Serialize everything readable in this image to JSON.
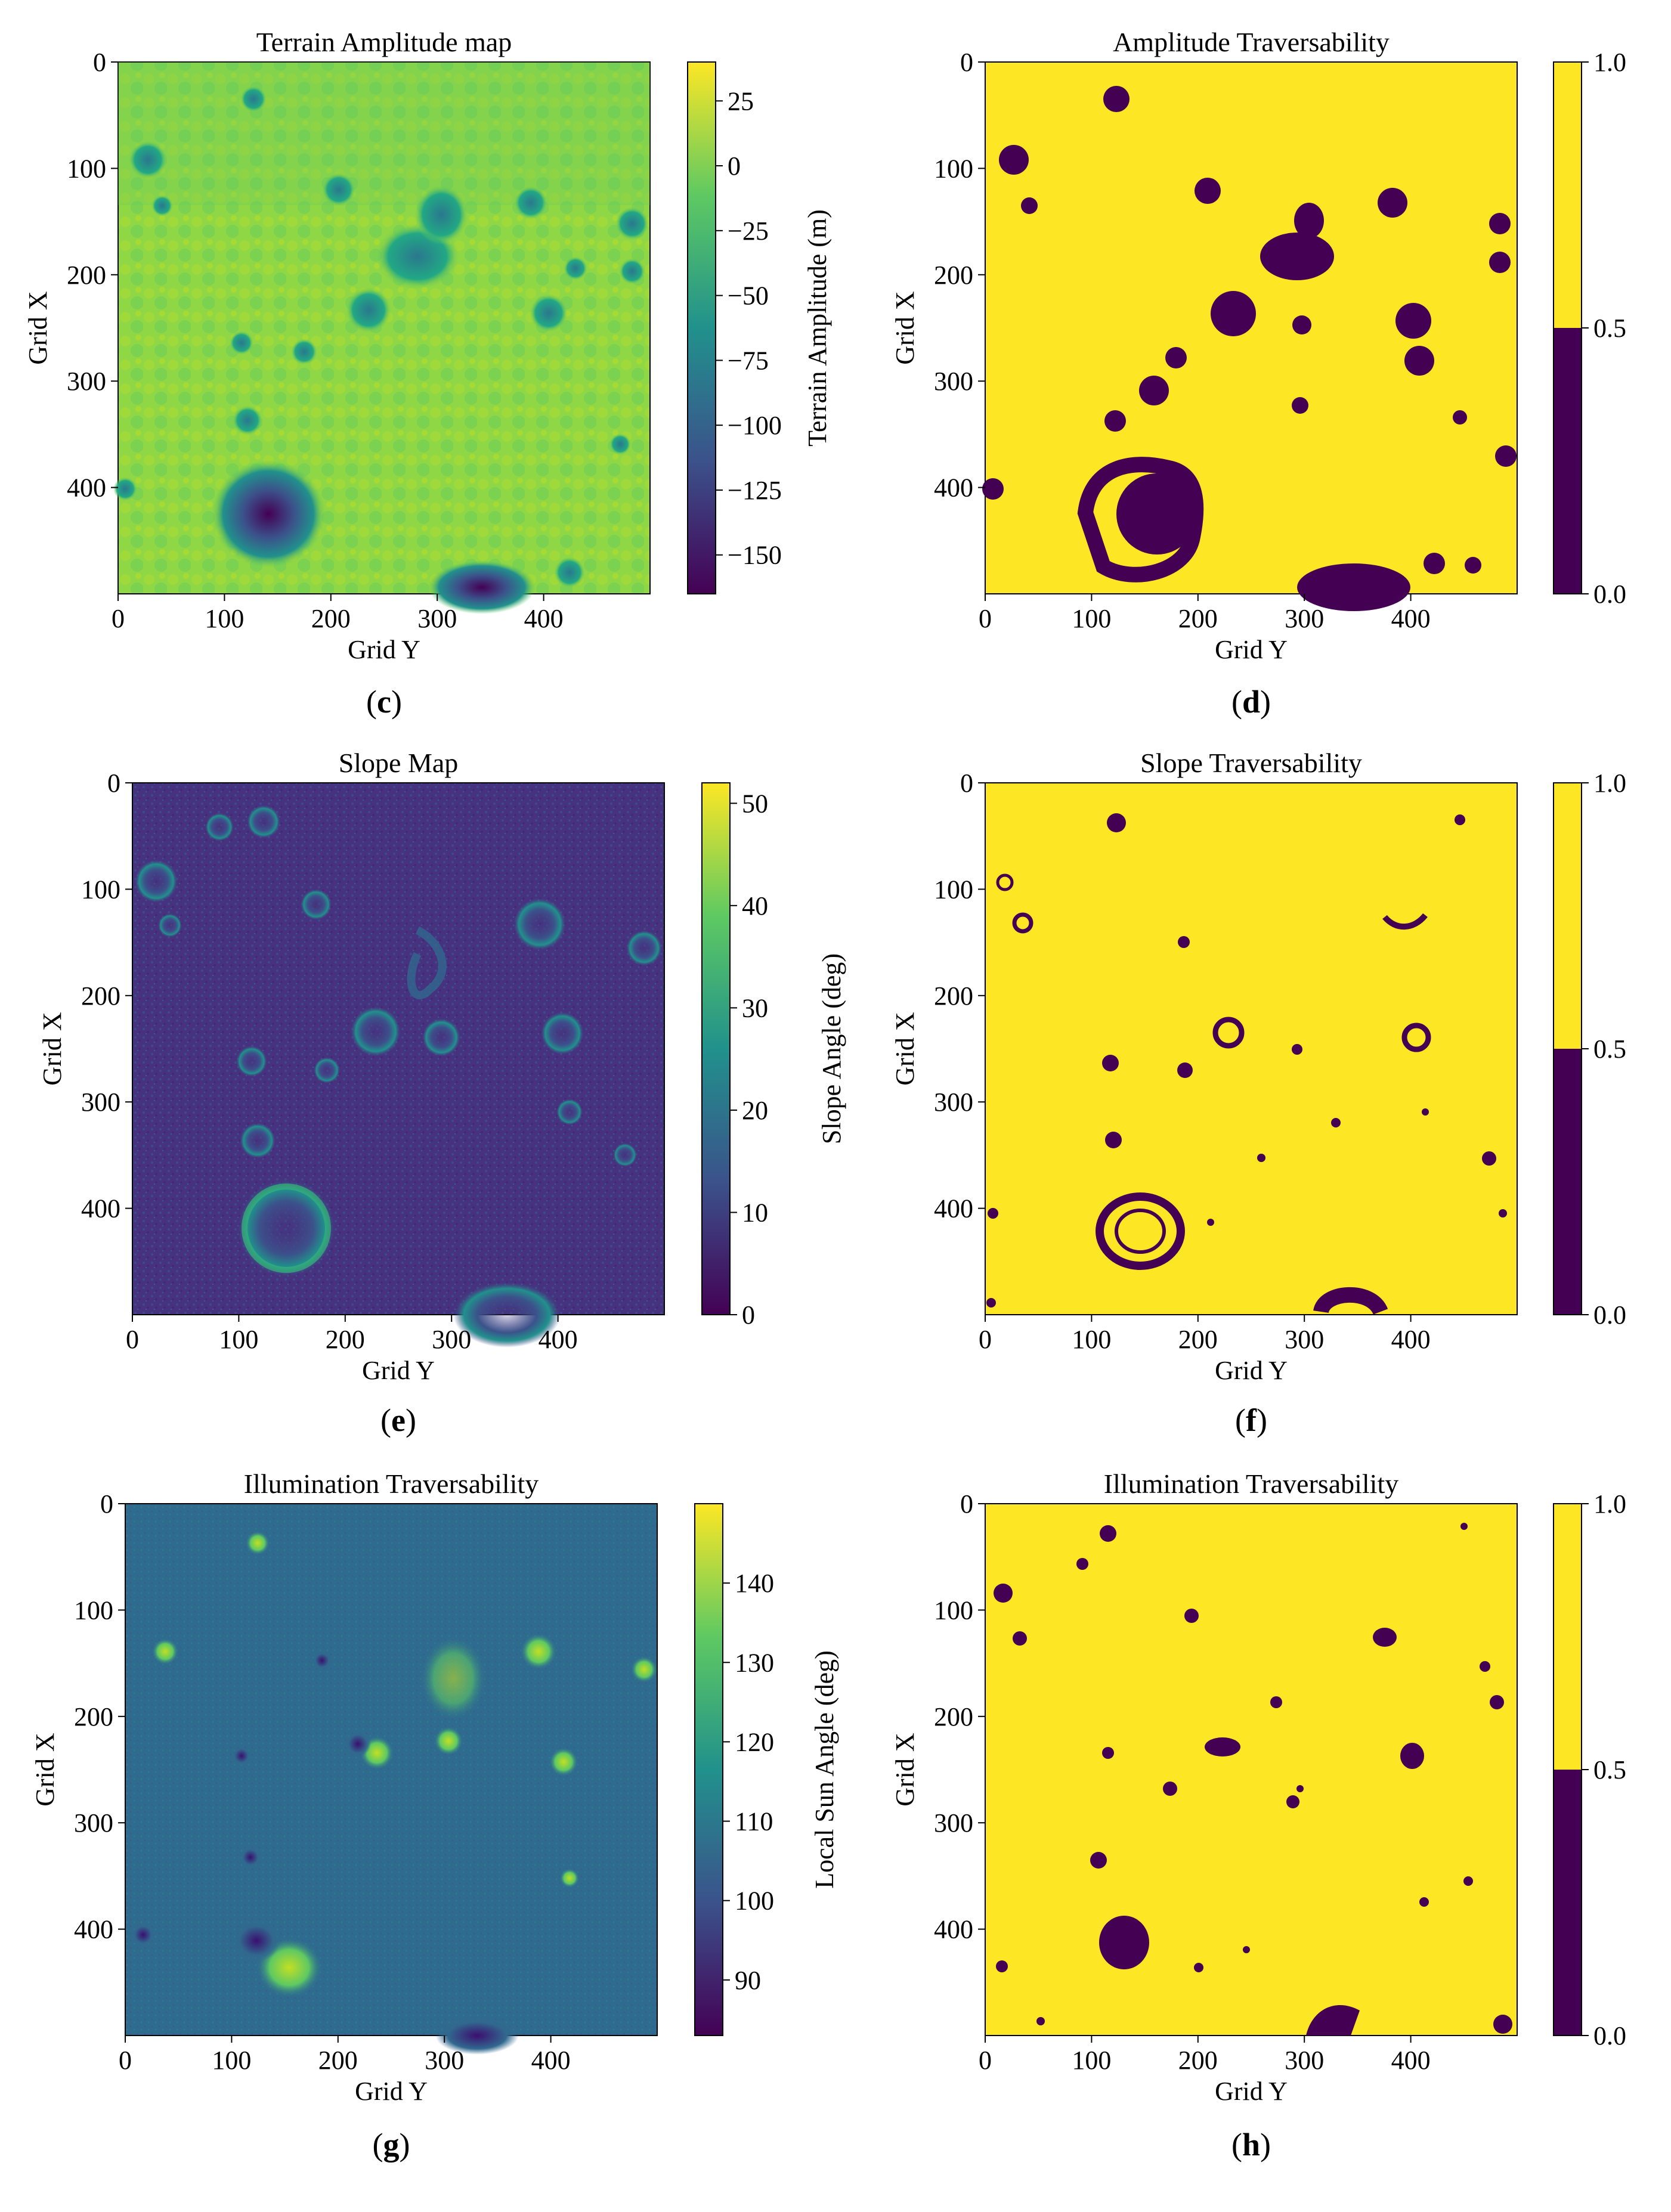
{
  "colors": {
    "viridis_dark": "#440154",
    "viridis_blue": "#3b528b",
    "viridis_teal": "#21918c",
    "viridis_green": "#5ec962",
    "viridis_yellow": "#fde725"
  },
  "chart_data": [
    {
      "id": "c",
      "type": "heatmap",
      "title": "Terrain Amplitude map",
      "xlabel": "Grid Y",
      "ylabel": "Grid X",
      "xlim": [
        0,
        500
      ],
      "ylim": [
        500,
        0
      ],
      "xticks": [
        "0",
        "100",
        "200",
        "300",
        "400"
      ],
      "yticks": [
        "0",
        "100",
        "200",
        "300",
        "400"
      ],
      "colorbar": {
        "label": "Terrain Amplitude (m)",
        "range": [
          -165,
          40
        ],
        "ticks": [
          "25",
          "0",
          "−25",
          "−50",
          "−75",
          "−100",
          "−125",
          "−150"
        ],
        "tick_values": [
          25,
          0,
          -25,
          -50,
          -75,
          -100,
          -125,
          -150
        ]
      },
      "caption": "c"
    },
    {
      "id": "d",
      "type": "heatmap",
      "title": "Amplitude Traversability",
      "xlabel": "Grid Y",
      "ylabel": "Grid X",
      "xlim": [
        0,
        500
      ],
      "ylim": [
        500,
        0
      ],
      "xticks": [
        "0",
        "100",
        "200",
        "300",
        "400"
      ],
      "yticks": [
        "0",
        "100",
        "200",
        "300",
        "400"
      ],
      "colorbar": {
        "label": "",
        "range": [
          0,
          1
        ],
        "discrete": true,
        "ticks": [
          "1.0",
          "0.5",
          "0.0"
        ],
        "tick_values": [
          1.0,
          0.5,
          0.0
        ]
      },
      "caption": "d"
    },
    {
      "id": "e",
      "type": "heatmap",
      "title": "Slope Map",
      "xlabel": "Grid Y",
      "ylabel": "Grid X",
      "xlim": [
        0,
        500
      ],
      "ylim": [
        500,
        0
      ],
      "xticks": [
        "0",
        "100",
        "200",
        "300",
        "400"
      ],
      "yticks": [
        "0",
        "100",
        "200",
        "300",
        "400"
      ],
      "colorbar": {
        "label": "Slope Angle (deg)",
        "range": [
          0,
          52
        ],
        "ticks": [
          "50",
          "40",
          "30",
          "20",
          "10",
          "0"
        ],
        "tick_values": [
          50,
          40,
          30,
          20,
          10,
          0
        ]
      },
      "caption": "e"
    },
    {
      "id": "f",
      "type": "heatmap",
      "title": "Slope Traversability",
      "xlabel": "Grid Y",
      "ylabel": "Grid X",
      "xlim": [
        0,
        500
      ],
      "ylim": [
        500,
        0
      ],
      "xticks": [
        "0",
        "100",
        "200",
        "300",
        "400"
      ],
      "yticks": [
        "0",
        "100",
        "200",
        "300",
        "400"
      ],
      "colorbar": {
        "label": "",
        "range": [
          0,
          1
        ],
        "discrete": true,
        "ticks": [
          "1.0",
          "0.5",
          "0.0"
        ],
        "tick_values": [
          1.0,
          0.5,
          0.0
        ]
      },
      "caption": "f"
    },
    {
      "id": "g",
      "type": "heatmap",
      "title": "Illumination Traversability",
      "xlabel": "Grid Y",
      "ylabel": "Grid X",
      "xlim": [
        0,
        500
      ],
      "ylim": [
        500,
        0
      ],
      "xticks": [
        "0",
        "100",
        "200",
        "300",
        "400"
      ],
      "yticks": [
        "0",
        "100",
        "200",
        "300",
        "400"
      ],
      "colorbar": {
        "label": "Local Sun Angle (deg)",
        "range": [
          83,
          150
        ],
        "ticks": [
          "140",
          "130",
          "120",
          "110",
          "100",
          "90"
        ],
        "tick_values": [
          140,
          130,
          120,
          110,
          100,
          90
        ]
      },
      "caption": "g"
    },
    {
      "id": "h",
      "type": "heatmap",
      "title": "Illumination Traversability",
      "xlabel": "Grid Y",
      "ylabel": "Grid X",
      "xlim": [
        0,
        500
      ],
      "ylim": [
        500,
        0
      ],
      "xticks": [
        "0",
        "100",
        "200",
        "300",
        "400"
      ],
      "yticks": [
        "0",
        "100",
        "200",
        "300",
        "400"
      ],
      "colorbar": {
        "label": "",
        "range": [
          0,
          1
        ],
        "discrete": true,
        "ticks": [
          "1.0",
          "0.5",
          "0.0"
        ],
        "tick_values": [
          1.0,
          0.5,
          0.0
        ]
      },
      "caption": "h"
    }
  ]
}
